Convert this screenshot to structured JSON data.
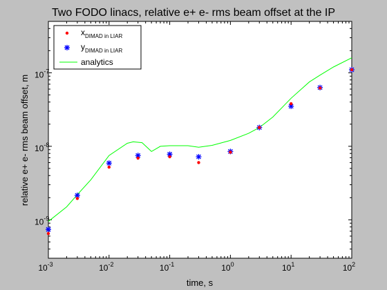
{
  "chart_data": {
    "type": "scatter",
    "title": "Two FODO linacs, relative e+ e- rms beam offset at the IP",
    "xlabel": "time, s",
    "ylabel": "relative e+ e- rms beam offset, m",
    "x_scale": "log",
    "y_scale": "log",
    "xlim": [
      0.001,
      100
    ],
    "ylim": [
      3e-10,
      5e-07
    ],
    "x_ticks": [
      {
        "value": 0.001,
        "base": "10",
        "exp": "-3"
      },
      {
        "value": 0.01,
        "base": "10",
        "exp": "-2"
      },
      {
        "value": 0.1,
        "base": "10",
        "exp": "-1"
      },
      {
        "value": 1,
        "base": "10",
        "exp": "0"
      },
      {
        "value": 10,
        "base": "10",
        "exp": "1"
      },
      {
        "value": 100,
        "base": "10",
        "exp": "2"
      }
    ],
    "y_ticks": [
      {
        "value": 1e-09,
        "base": "10",
        "exp": "-9"
      },
      {
        "value": 1e-08,
        "base": "10",
        "exp": "-8"
      },
      {
        "value": 1e-07,
        "base": "10",
        "exp": "-7"
      }
    ],
    "grid": false,
    "legend_position": "top-left",
    "series": [
      {
        "name": "x",
        "name_subscript": "DIMAD in LIAR",
        "marker": "dot",
        "color": "#ff0000",
        "x": [
          0.001,
          0.003,
          0.01,
          0.03,
          0.1,
          0.3,
          1,
          3,
          10,
          30,
          100
        ],
        "y": [
          6.5e-10,
          1.95e-09,
          5.2e-09,
          6.9e-09,
          7.2e-09,
          6e-09,
          8.3e-09,
          1.8e-08,
          3.8e-08,
          6.2e-08,
          1.1e-07
        ]
      },
      {
        "name": "y",
        "name_subscript": "DIMAD in LIAR",
        "marker": "asterisk",
        "color": "#0000ff",
        "x": [
          0.001,
          0.003,
          0.01,
          0.03,
          0.1,
          0.3,
          1,
          3,
          10,
          30,
          100
        ],
        "y": [
          7.4e-10,
          2.15e-09,
          5.9e-09,
          7.5e-09,
          7.8e-09,
          7.2e-09,
          8.5e-09,
          1.8e-08,
          3.5e-08,
          6.3e-08,
          1.1e-07
        ]
      },
      {
        "name": "analytics",
        "marker": "line",
        "color": "#00ff00",
        "x": [
          0.001,
          0.002,
          0.003,
          0.005,
          0.01,
          0.02,
          0.025,
          0.035,
          0.05,
          0.07,
          0.1,
          0.2,
          0.3,
          0.5,
          1,
          2,
          3,
          5,
          10,
          20,
          30,
          50,
          100
        ],
        "y": [
          9.5e-10,
          1.5e-09,
          2.2e-09,
          3.5e-09,
          7.5e-09,
          1.1e-08,
          1.15e-08,
          1.12e-08,
          8.5e-09,
          1e-08,
          1.02e-08,
          1.02e-08,
          9.7e-09,
          1.03e-08,
          1.2e-08,
          1.5e-08,
          1.8e-08,
          2.5e-08,
          4.5e-08,
          7.5e-08,
          9.3e-08,
          1.2e-07,
          1.6e-07
        ]
      }
    ]
  }
}
